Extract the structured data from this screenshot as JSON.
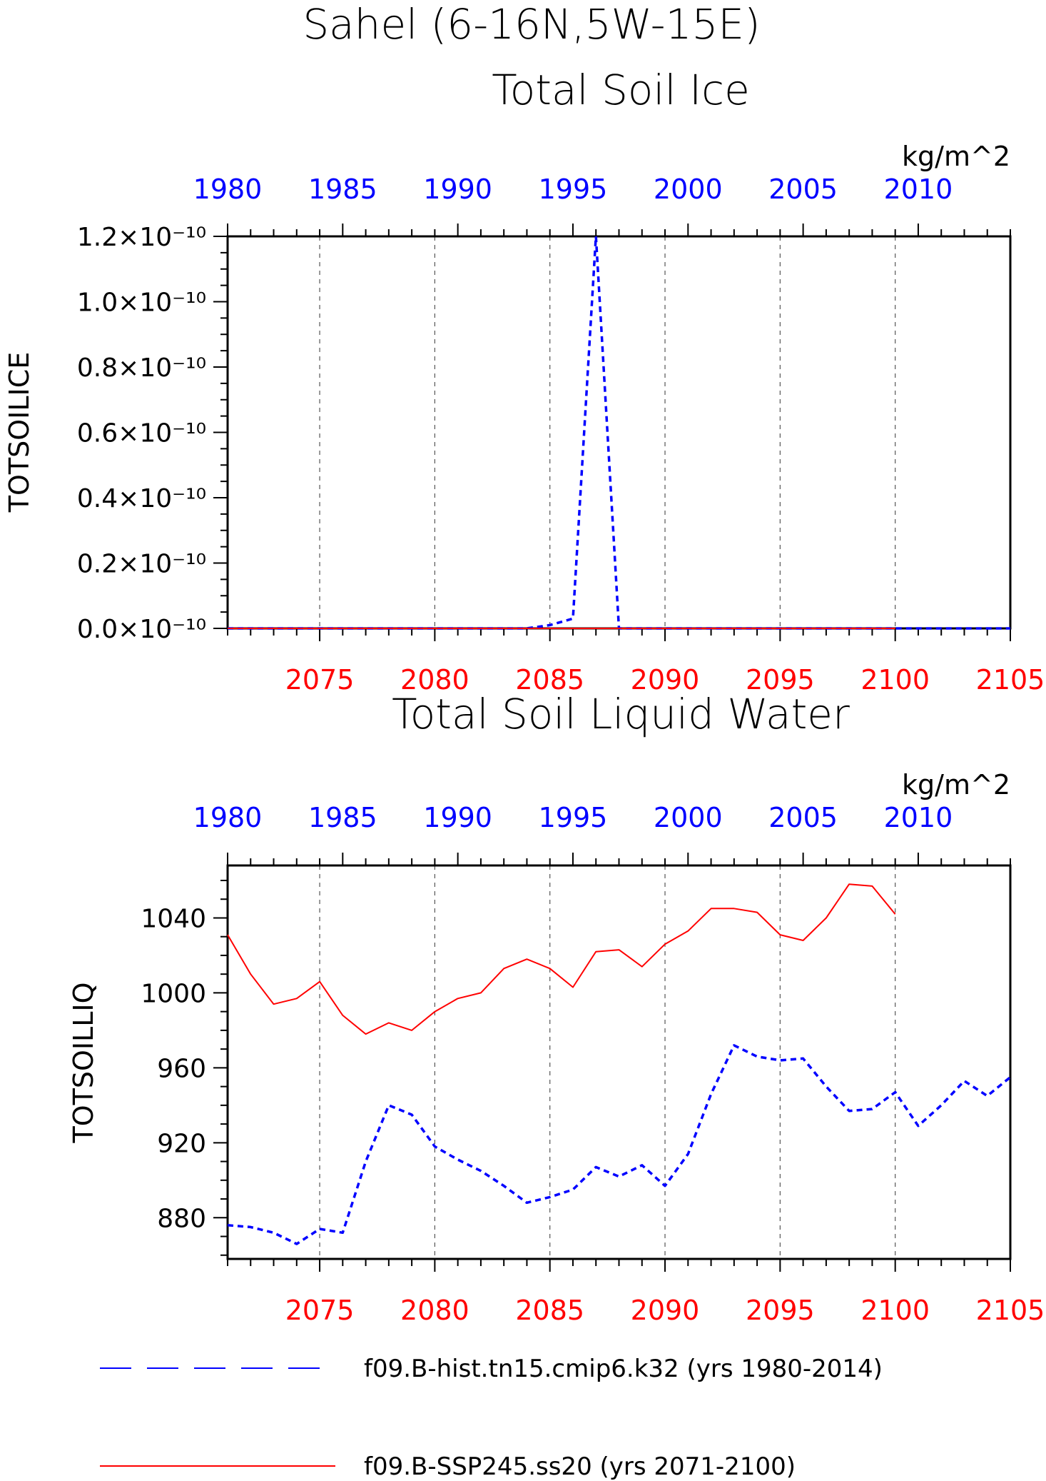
{
  "figure": {
    "title_line1": "Sahel (6-16N,5W-15E)",
    "legend": [
      {
        "label": "f09.B-hist.tn15.cmip6.k32 (yrs 1980-2014)",
        "color": "#0000ff",
        "style": "dashed"
      },
      {
        "label": "f09.B-SSP245.ss20 (yrs 2071-2100)",
        "color": "#ff0000",
        "style": "solid"
      }
    ]
  },
  "chart_data": [
    {
      "type": "line",
      "title": "Total Soil Ice",
      "units": "kg/m^2",
      "ylabel": "TOTSOILICE",
      "ylim": [
        0,
        1.2e-10
      ],
      "yticks": [
        "0.0×10⁻¹⁰",
        "0.2×10⁻¹⁰",
        "0.4×10⁻¹⁰",
        "0.6×10⁻¹⁰",
        "0.8×10⁻¹⁰",
        "1.0×10⁻¹⁰",
        "1.2×10⁻¹⁰"
      ],
      "ytick_values": [
        0,
        2e-11,
        4e-11,
        6e-11,
        8e-11,
        1e-10,
        1.2e-10
      ],
      "top_axis": {
        "color": "#0000ff",
        "ticks": [
          1980,
          1985,
          1990,
          1995,
          2000,
          2005,
          2010
        ],
        "range": [
          1980,
          2014
        ]
      },
      "bottom_axis": {
        "color": "#ff0000",
        "ticks": [
          2075,
          2080,
          2085,
          2090,
          2095,
          2100,
          2105
        ],
        "range": [
          2071,
          2105
        ]
      },
      "grid": "dashed vertical at bottom-axis ticks",
      "series": [
        {
          "name": "f09.B-hist.tn15.cmip6.k32 (yrs 1980-2014)",
          "axis": "top",
          "color": "#0000ff",
          "style": "dashed",
          "x": [
            1980,
            1981,
            1982,
            1983,
            1984,
            1985,
            1986,
            1987,
            1988,
            1989,
            1990,
            1991,
            1992,
            1993,
            1994,
            1995,
            1996,
            1997,
            1998,
            1999,
            2000,
            2001,
            2002,
            2003,
            2004,
            2005,
            2006,
            2007,
            2008,
            2009,
            2010,
            2011,
            2012,
            2013,
            2014
          ],
          "values": [
            0,
            0,
            0,
            0,
            0,
            0,
            0,
            0,
            0,
            0,
            0,
            0,
            0,
            0,
            1e-12,
            3e-12,
            1.2e-10,
            0,
            0,
            0,
            0,
            0,
            0,
            0,
            0,
            0,
            0,
            0,
            0,
            0,
            0,
            0,
            0,
            0,
            0
          ]
        },
        {
          "name": "f09.B-SSP245.ss20 (yrs 2071-2100)",
          "axis": "bottom",
          "color": "#ff0000",
          "style": "solid",
          "x": [
            2071,
            2072,
            2073,
            2074,
            2075,
            2076,
            2077,
            2078,
            2079,
            2080,
            2081,
            2082,
            2083,
            2084,
            2085,
            2086,
            2087,
            2088,
            2089,
            2090,
            2091,
            2092,
            2093,
            2094,
            2095,
            2096,
            2097,
            2098,
            2099,
            2100
          ],
          "values": [
            0,
            0,
            0,
            0,
            0,
            0,
            0,
            0,
            0,
            0,
            0,
            0,
            0,
            0,
            0,
            0,
            0,
            0,
            0,
            0,
            0,
            0,
            0,
            0,
            0,
            0,
            0,
            0,
            0,
            0
          ]
        }
      ]
    },
    {
      "type": "line",
      "title": "Total Soil Liquid Water",
      "units": "kg/m^2",
      "ylabel": "TOTSOILLIQ",
      "ylim": [
        858,
        1068
      ],
      "yticks": [
        "880",
        "920",
        "960",
        "1000",
        "1040"
      ],
      "ytick_values": [
        880,
        920,
        960,
        1000,
        1040
      ],
      "top_axis": {
        "color": "#0000ff",
        "ticks": [
          1980,
          1985,
          1990,
          1995,
          2000,
          2005,
          2010
        ],
        "range": [
          1980,
          2014
        ]
      },
      "bottom_axis": {
        "color": "#ff0000",
        "ticks": [
          2075,
          2080,
          2085,
          2090,
          2095,
          2100,
          2105
        ],
        "range": [
          2071,
          2105
        ]
      },
      "grid": "dashed vertical at bottom-axis ticks",
      "series": [
        {
          "name": "f09.B-hist.tn15.cmip6.k32 (yrs 1980-2014)",
          "axis": "top",
          "color": "#0000ff",
          "style": "dashed",
          "x": [
            1980,
            1981,
            1982,
            1983,
            1984,
            1985,
            1986,
            1987,
            1988,
            1989,
            1990,
            1991,
            1992,
            1993,
            1994,
            1995,
            1996,
            1997,
            1998,
            1999,
            2000,
            2001,
            2002,
            2003,
            2004,
            2005,
            2006,
            2007,
            2008,
            2009,
            2010,
            2011,
            2012,
            2013,
            2014
          ],
          "values": [
            876,
            875,
            872,
            866,
            874,
            872,
            910,
            940,
            935,
            918,
            911,
            905,
            897,
            888,
            891,
            895,
            907,
            902,
            908,
            897,
            914,
            946,
            972,
            966,
            964,
            965,
            950,
            937,
            938,
            947,
            929,
            940,
            953,
            945,
            955
          ]
        },
        {
          "name": "f09.B-SSP245.ss20 (yrs 2071-2100)",
          "axis": "bottom",
          "color": "#ff0000",
          "style": "solid",
          "x": [
            2071,
            2072,
            2073,
            2074,
            2075,
            2076,
            2077,
            2078,
            2079,
            2080,
            2081,
            2082,
            2083,
            2084,
            2085,
            2086,
            2087,
            2088,
            2089,
            2090,
            2091,
            2092,
            2093,
            2094,
            2095,
            2096,
            2097,
            2098,
            2099,
            2100
          ],
          "values": [
            1031,
            1010,
            994,
            997,
            1006,
            988,
            978,
            984,
            980,
            990,
            997,
            1000,
            1013,
            1018,
            1013,
            1003,
            1022,
            1023,
            1014,
            1026,
            1033,
            1045,
            1045,
            1043,
            1031,
            1028,
            1040,
            1058,
            1057,
            1042
          ]
        }
      ]
    }
  ]
}
